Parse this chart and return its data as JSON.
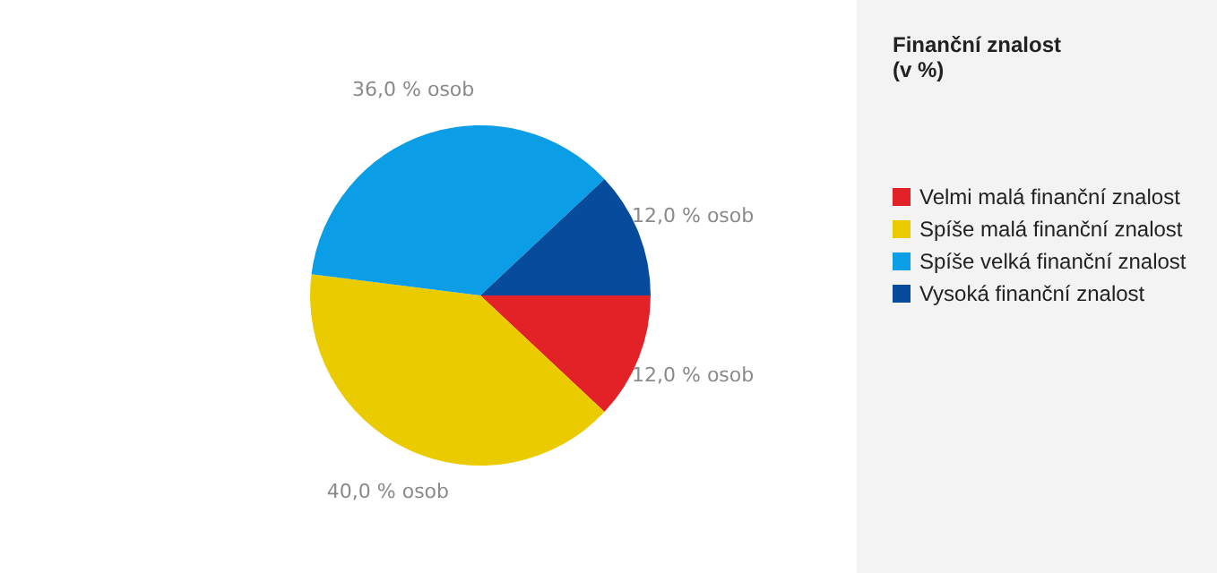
{
  "chart_data": {
    "type": "pie",
    "legend_title": "Finanční znalost\n(v %)",
    "categories": [
      "Velmi malá finanční znalost",
      "Spíše malá finanční znalost",
      "Spíše velká finanční znalost",
      "Vysoká finanční znalost"
    ],
    "values": [
      12,
      40,
      36,
      12
    ],
    "colors": [
      "#e32227",
      "#eacb00",
      "#0b9de6",
      "#074c9c"
    ],
    "value_labels": [
      "12,0 % osob",
      "40,0 % osob",
      "36,0 % osob",
      "12,0 % osob"
    ],
    "legend": "right"
  }
}
